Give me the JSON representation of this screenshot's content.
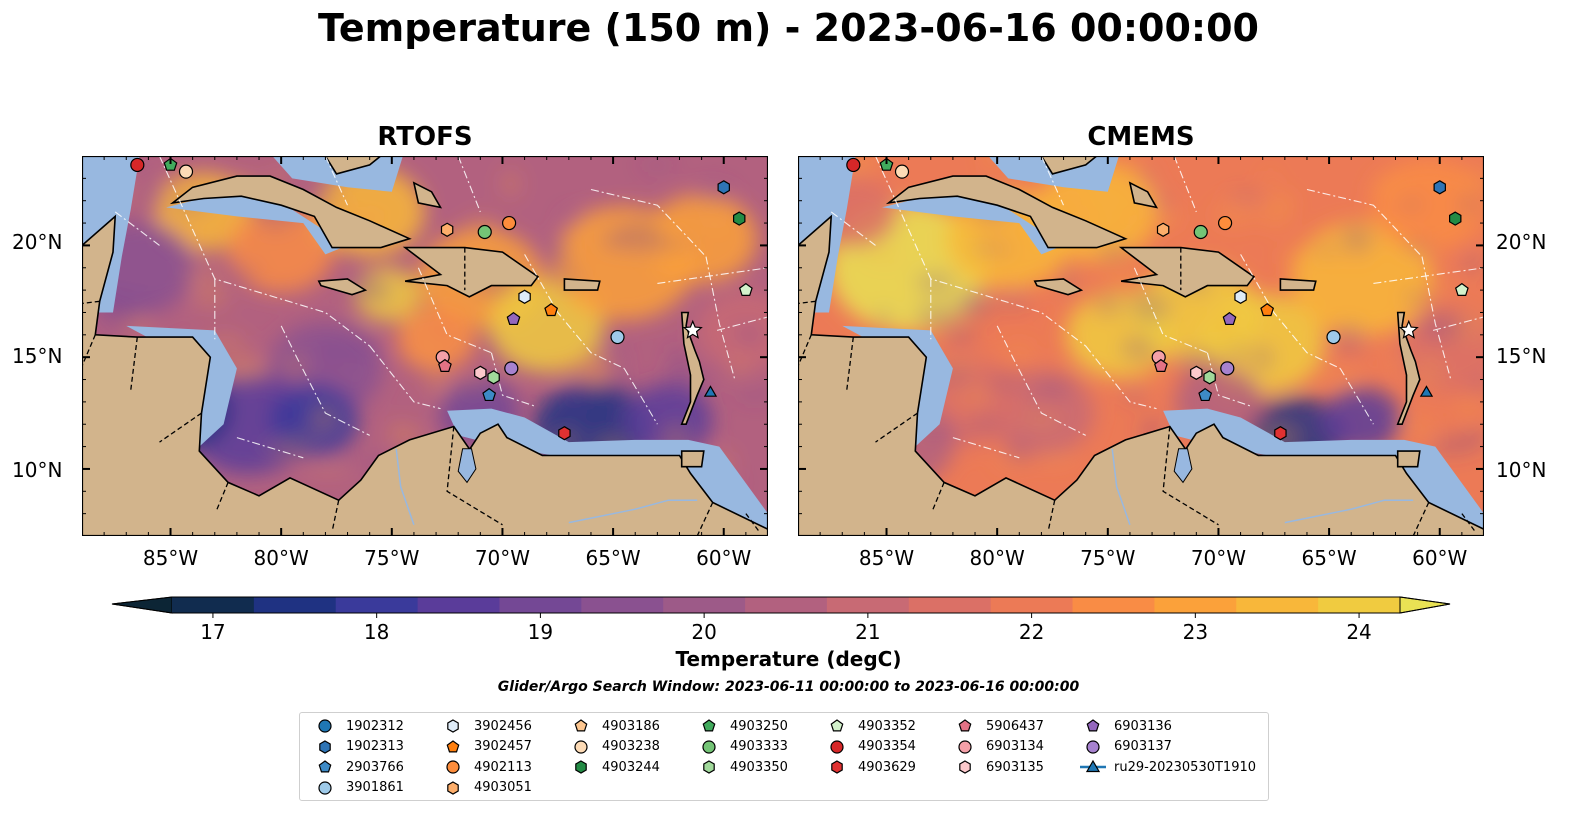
{
  "title": "Temperature (150 m) - 2023-06-16 00:00:00",
  "panels": [
    {
      "id": "rtofs",
      "title": "RTOFS"
    },
    {
      "id": "cmems",
      "title": "CMEMS"
    }
  ],
  "lon_ticks": [
    "85°W",
    "80°W",
    "75°W",
    "70°W",
    "65°W",
    "60°W"
  ],
  "lat_ticks": [
    "20°N",
    "15°N",
    "10°N"
  ],
  "extent": {
    "lon": [
      -89,
      -58
    ],
    "lat": [
      7,
      24
    ]
  },
  "colorbar": {
    "label": "Temperature (degC)",
    "min": 16.75,
    "max": 24.5,
    "ticks": [
      "17",
      "18",
      "19",
      "20",
      "21",
      "22",
      "23",
      "24"
    ],
    "colors": [
      "#0c2535",
      "#112c4f",
      "#1f3282",
      "#3a3a9b",
      "#5a3c9a",
      "#744895",
      "#8a5190",
      "#9d5a88",
      "#b2617f",
      "#c86a74",
      "#db7066",
      "#ec7a56",
      "#f98c45",
      "#fba13a",
      "#f8b73a",
      "#f0cb40",
      "#e9e254"
    ]
  },
  "search_window": "Glider/Argo Search Window: 2023-06-11 00:00:00 to 2023-06-16 00:00:00",
  "colors": {
    "land": "#d2b48c",
    "shelf": "#98b8e0"
  },
  "legend": [
    {
      "label": "1902312",
      "marker": "circle",
      "color": "#1f77b4"
    },
    {
      "label": "1902313",
      "marker": "hexagon",
      "color": "#2e74b5"
    },
    {
      "label": "2903766",
      "marker": "pentagon",
      "color": "#3d8ac6"
    },
    {
      "label": "3901861",
      "marker": "circle",
      "color": "#9ecae9"
    },
    {
      "label": "3902456",
      "marker": "hexagon",
      "color": "#deebf7"
    },
    {
      "label": "3902457",
      "marker": "pentagon",
      "color": "#ff7f0e"
    },
    {
      "label": "4902113",
      "marker": "circle",
      "color": "#fd8d3c"
    },
    {
      "label": "4903051",
      "marker": "hexagon",
      "color": "#fdae6b"
    },
    {
      "label": "4903186",
      "marker": "pentagon",
      "color": "#fdc68f"
    },
    {
      "label": "4903238",
      "marker": "circle",
      "color": "#fddbb6"
    },
    {
      "label": "4903244",
      "marker": "hexagon",
      "color": "#238b45"
    },
    {
      "label": "4903250",
      "marker": "pentagon",
      "color": "#41ab5d"
    },
    {
      "label": "4903333",
      "marker": "circle",
      "color": "#74c476"
    },
    {
      "label": "4903350",
      "marker": "hexagon",
      "color": "#a1d99b"
    },
    {
      "label": "4903352",
      "marker": "pentagon",
      "color": "#d3f2cc"
    },
    {
      "label": "4903354",
      "marker": "circle",
      "color": "#d62728"
    },
    {
      "label": "4903629",
      "marker": "hexagon",
      "color": "#e03131"
    },
    {
      "label": "5906437",
      "marker": "pentagon",
      "color": "#e37285"
    },
    {
      "label": "6903134",
      "marker": "circle",
      "color": "#f4a0a8"
    },
    {
      "label": "6903135",
      "marker": "hexagon",
      "color": "#fcc9cc"
    },
    {
      "label": "6903136",
      "marker": "pentagon",
      "color": "#9467bd"
    },
    {
      "label": "6903137",
      "marker": "circle",
      "color": "#a782cf"
    },
    {
      "label": "ru29-20230530T1910",
      "marker": "triangle-line",
      "color": "#1f77b4"
    }
  ],
  "floats": [
    {
      "lon": -86.5,
      "lat": 23.6,
      "marker": "circle",
      "color": "#d62728"
    },
    {
      "lon": -85.0,
      "lat": 23.6,
      "marker": "pentagon",
      "color": "#41ab5d"
    },
    {
      "lon": -84.3,
      "lat": 23.3,
      "marker": "circle",
      "color": "#fddbb6"
    },
    {
      "lon": -60.0,
      "lat": 22.6,
      "marker": "hexagon",
      "color": "#2e74b5"
    },
    {
      "lon": -59.3,
      "lat": 21.2,
      "marker": "hexagon",
      "color": "#238b45"
    },
    {
      "lon": -69.7,
      "lat": 21.0,
      "marker": "circle",
      "color": "#fd8d3c"
    },
    {
      "lon": -72.5,
      "lat": 20.7,
      "marker": "hexagon",
      "color": "#fdae6b"
    },
    {
      "lon": -70.8,
      "lat": 20.6,
      "marker": "circle",
      "color": "#74c476"
    },
    {
      "lon": -59.0,
      "lat": 18.0,
      "marker": "pentagon",
      "color": "#d3f2cc"
    },
    {
      "lon": -69.0,
      "lat": 17.7,
      "marker": "hexagon",
      "color": "#deebf7"
    },
    {
      "lon": -67.8,
      "lat": 17.1,
      "marker": "pentagon",
      "color": "#ff7f0e"
    },
    {
      "lon": -69.5,
      "lat": 16.7,
      "marker": "pentagon",
      "color": "#9467bd"
    },
    {
      "lon": -64.8,
      "lat": 15.9,
      "marker": "circle",
      "color": "#9ecae9"
    },
    {
      "lon": -61.4,
      "lat": 16.2,
      "marker": "star",
      "color": "#ffffff"
    },
    {
      "lon": -72.7,
      "lat": 15.0,
      "marker": "circle",
      "color": "#f4a0a8"
    },
    {
      "lon": -72.6,
      "lat": 14.6,
      "marker": "pentagon",
      "color": "#e37285"
    },
    {
      "lon": -71.0,
      "lat": 14.3,
      "marker": "hexagon",
      "color": "#fcc9cc"
    },
    {
      "lon": -70.4,
      "lat": 14.1,
      "marker": "hexagon",
      "color": "#a1d99b"
    },
    {
      "lon": -69.6,
      "lat": 14.5,
      "marker": "circle",
      "color": "#a782cf"
    },
    {
      "lon": -70.6,
      "lat": 13.3,
      "marker": "pentagon",
      "color": "#3d8ac6"
    },
    {
      "lon": -67.2,
      "lat": 11.6,
      "marker": "hexagon",
      "color": "#e03131"
    },
    {
      "lon": -60.6,
      "lat": 13.4,
      "marker": "triangle",
      "color": "#1f77b4"
    }
  ]
}
